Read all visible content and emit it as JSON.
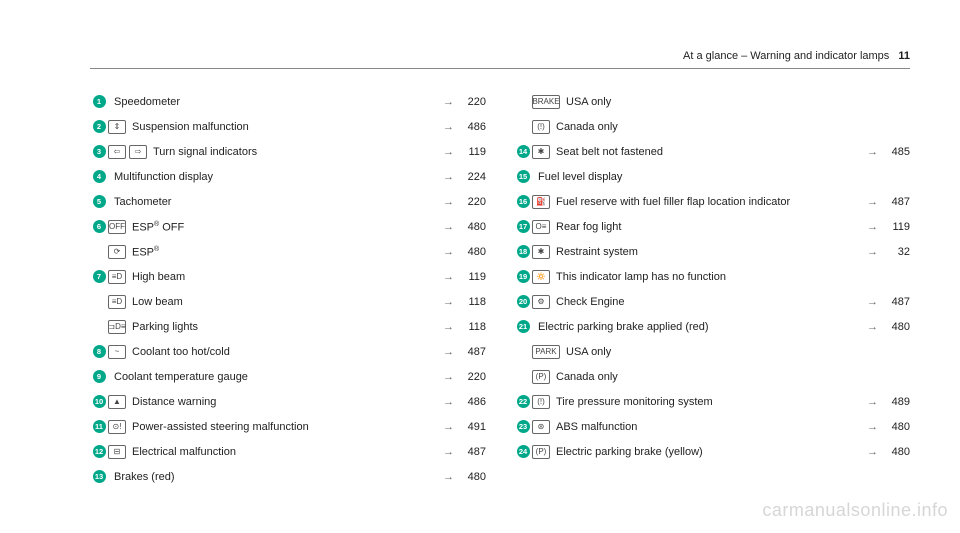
{
  "header": {
    "title": "At a glance – Warning and indicator lamps",
    "pagenum": "11"
  },
  "watermark": "carmanualsonline.info",
  "accent_color": "#00a889",
  "left": [
    {
      "n": "1",
      "icons": [],
      "label": "Speedometer",
      "page": "220"
    },
    {
      "n": "2",
      "icons": [
        "⇕"
      ],
      "label": "Suspension malfunction",
      "page": "486"
    },
    {
      "n": "3",
      "icons": [
        "⇦",
        "⇨"
      ],
      "label": "Turn signal indicators",
      "page": "119"
    },
    {
      "n": "4",
      "icons": [],
      "label": "Multifunction display",
      "page": "224"
    },
    {
      "n": "5",
      "icons": [],
      "label": "Tachometer",
      "page": "220"
    },
    {
      "n": "6",
      "icons": [
        "OFF"
      ],
      "label": "ESP® OFF",
      "page": "480"
    },
    {
      "n": "",
      "icons": [
        "⟳"
      ],
      "label": "ESP®",
      "page": "480"
    },
    {
      "n": "7",
      "icons": [
        "≡D"
      ],
      "label": "High beam",
      "page": "119"
    },
    {
      "n": "",
      "icons": [
        "≡D"
      ],
      "label": "Low beam",
      "page": "118"
    },
    {
      "n": "",
      "icons": [
        "⊐D≡"
      ],
      "label": "Parking lights",
      "page": "118"
    },
    {
      "n": "8",
      "icons": [
        "~"
      ],
      "label": "Coolant too hot/cold",
      "page": "487"
    },
    {
      "n": "9",
      "icons": [],
      "label": "Coolant temperature gauge",
      "page": "220"
    },
    {
      "n": "10",
      "icons": [
        "▲"
      ],
      "label": "Distance warning",
      "page": "486"
    },
    {
      "n": "11",
      "icons": [
        "⊙!"
      ],
      "label": "Power-assisted steering malfunction",
      "page": "491"
    },
    {
      "n": "12",
      "icons": [
        "⊟"
      ],
      "label": "Electrical malfunction",
      "page": "487"
    },
    {
      "n": "13",
      "icons": [],
      "label": "Brakes (red)",
      "page": "480"
    }
  ],
  "right": [
    {
      "n": "",
      "icons": [
        "BRAKE"
      ],
      "wide": true,
      "label": "USA only",
      "page": ""
    },
    {
      "n": "",
      "icons": [
        "(!)"
      ],
      "label": "Canada only",
      "page": ""
    },
    {
      "n": "14",
      "icons": [
        "✱"
      ],
      "label": "Seat belt not fastened",
      "page": "485"
    },
    {
      "n": "15",
      "icons": [],
      "label": "Fuel level display",
      "page": ""
    },
    {
      "n": "16",
      "icons": [
        "⛽"
      ],
      "label": "Fuel reserve with fuel filler flap location indicator",
      "page": "487"
    },
    {
      "n": "17",
      "icons": [
        "O≡"
      ],
      "label": "Rear fog light",
      "page": "119"
    },
    {
      "n": "18",
      "icons": [
        "✱"
      ],
      "label": "Restraint system",
      "page": "32"
    },
    {
      "n": "19",
      "icons": [
        "🔅"
      ],
      "label": "This indicator lamp has no function",
      "page": ""
    },
    {
      "n": "20",
      "icons": [
        "⚙"
      ],
      "label": "Check Engine",
      "page": "487"
    },
    {
      "n": "21",
      "icons": [],
      "label": "Electric parking brake applied (red)",
      "page": "480"
    },
    {
      "n": "",
      "icons": [
        "PARK"
      ],
      "wide": true,
      "label": "USA only",
      "page": ""
    },
    {
      "n": "",
      "icons": [
        "(P)"
      ],
      "label": "Canada only",
      "page": ""
    },
    {
      "n": "22",
      "icons": [
        "(!)"
      ],
      "label": "Tire pressure monitoring system",
      "page": "489"
    },
    {
      "n": "23",
      "icons": [
        "⊛"
      ],
      "label": "ABS malfunction",
      "page": "480"
    },
    {
      "n": "24",
      "icons": [
        "(P)"
      ],
      "label": "Electric parking brake (yellow)",
      "page": "480"
    }
  ]
}
